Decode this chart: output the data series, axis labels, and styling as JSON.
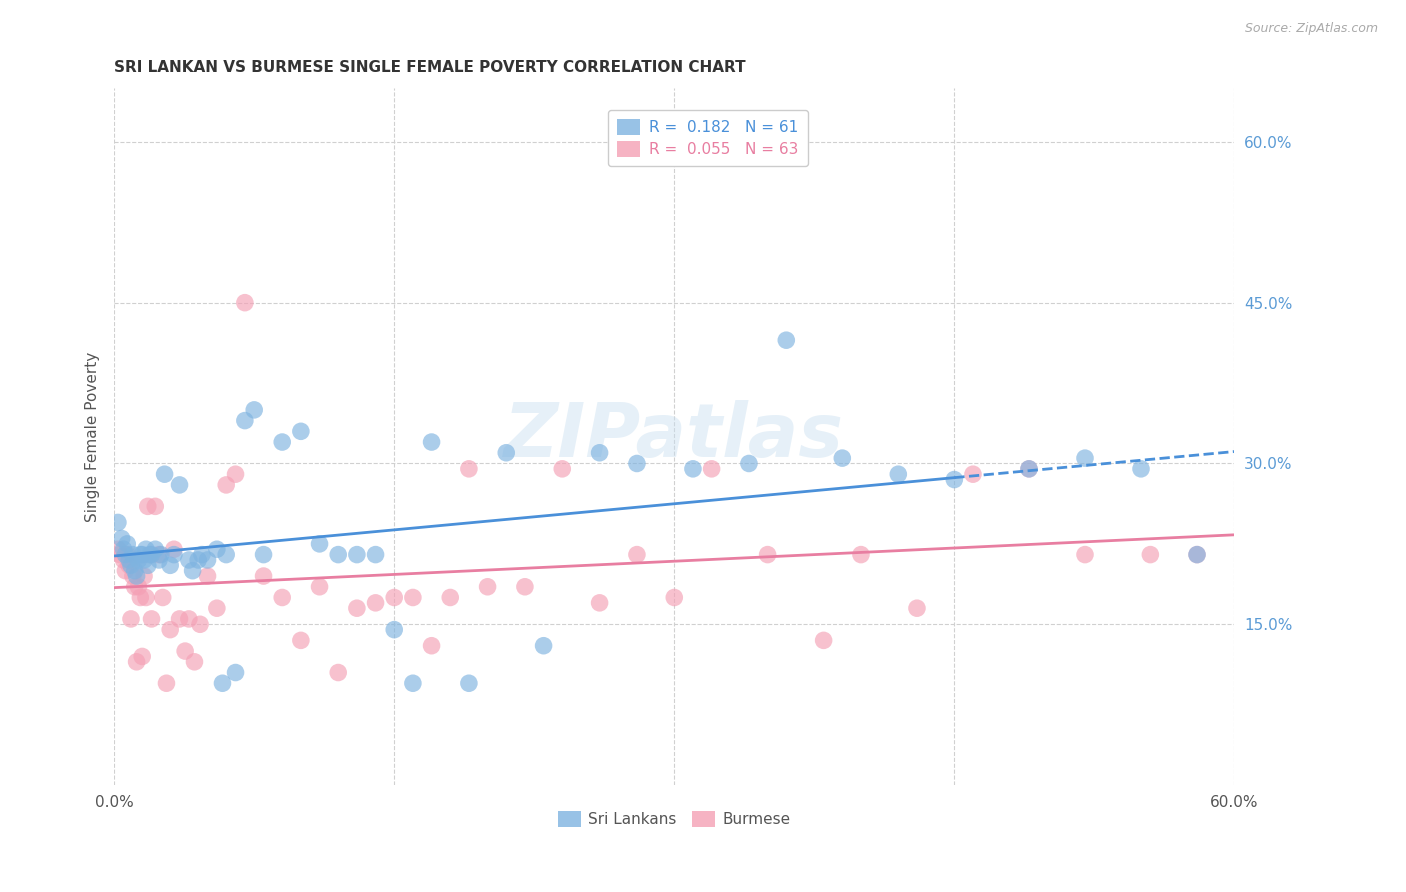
{
  "title": "SRI LANKAN VS BURMESE SINGLE FEMALE POVERTY CORRELATION CHART",
  "source": "Source: ZipAtlas.com",
  "ylabel": "Single Female Poverty",
  "xlim": [
    0.0,
    0.6
  ],
  "ylim": [
    0.0,
    0.65
  ],
  "ytick_values_right": [
    0.6,
    0.45,
    0.3,
    0.15
  ],
  "sri_lankans_color": "#7eb3e0",
  "burmese_color": "#f4a0b5",
  "sri_lankans_line_color": "#4a90d9",
  "burmese_line_color": "#e87ea1",
  "background_color": "#ffffff",
  "grid_color": "#d0d0d0",
  "watermark": "ZIPatlas",
  "sri_lankans_x": [
    0.002,
    0.004,
    0.005,
    0.006,
    0.007,
    0.008,
    0.009,
    0.01,
    0.011,
    0.012,
    0.013,
    0.014,
    0.015,
    0.016,
    0.017,
    0.018,
    0.019,
    0.02,
    0.022,
    0.024,
    0.025,
    0.027,
    0.03,
    0.032,
    0.035,
    0.04,
    0.042,
    0.045,
    0.047,
    0.05,
    0.055,
    0.058,
    0.06,
    0.065,
    0.07,
    0.075,
    0.08,
    0.09,
    0.1,
    0.11,
    0.12,
    0.13,
    0.14,
    0.15,
    0.16,
    0.17,
    0.19,
    0.21,
    0.23,
    0.26,
    0.28,
    0.31,
    0.34,
    0.36,
    0.39,
    0.42,
    0.45,
    0.49,
    0.52,
    0.55,
    0.58
  ],
  "sri_lankans_y": [
    0.245,
    0.23,
    0.22,
    0.215,
    0.225,
    0.21,
    0.205,
    0.215,
    0.2,
    0.195,
    0.21,
    0.215,
    0.215,
    0.21,
    0.22,
    0.205,
    0.215,
    0.215,
    0.22,
    0.21,
    0.215,
    0.29,
    0.205,
    0.215,
    0.28,
    0.21,
    0.2,
    0.21,
    0.215,
    0.21,
    0.22,
    0.095,
    0.215,
    0.105,
    0.34,
    0.35,
    0.215,
    0.32,
    0.33,
    0.225,
    0.215,
    0.215,
    0.215,
    0.145,
    0.095,
    0.32,
    0.095,
    0.31,
    0.13,
    0.31,
    0.3,
    0.295,
    0.3,
    0.415,
    0.305,
    0.29,
    0.285,
    0.295,
    0.305,
    0.295,
    0.215
  ],
  "burmese_x": [
    0.002,
    0.003,
    0.005,
    0.006,
    0.007,
    0.008,
    0.009,
    0.01,
    0.011,
    0.012,
    0.013,
    0.014,
    0.015,
    0.016,
    0.017,
    0.018,
    0.02,
    0.022,
    0.024,
    0.026,
    0.028,
    0.03,
    0.032,
    0.035,
    0.038,
    0.04,
    0.043,
    0.046,
    0.05,
    0.055,
    0.06,
    0.065,
    0.07,
    0.08,
    0.09,
    0.1,
    0.11,
    0.12,
    0.13,
    0.14,
    0.15,
    0.16,
    0.17,
    0.18,
    0.19,
    0.2,
    0.22,
    0.24,
    0.26,
    0.28,
    0.3,
    0.32,
    0.35,
    0.38,
    0.4,
    0.43,
    0.46,
    0.49,
    0.52,
    0.555,
    0.58
  ],
  "burmese_y": [
    0.22,
    0.215,
    0.21,
    0.2,
    0.215,
    0.205,
    0.155,
    0.195,
    0.185,
    0.115,
    0.185,
    0.175,
    0.12,
    0.195,
    0.175,
    0.26,
    0.155,
    0.26,
    0.215,
    0.175,
    0.095,
    0.145,
    0.22,
    0.155,
    0.125,
    0.155,
    0.115,
    0.15,
    0.195,
    0.165,
    0.28,
    0.29,
    0.45,
    0.195,
    0.175,
    0.135,
    0.185,
    0.105,
    0.165,
    0.17,
    0.175,
    0.175,
    0.13,
    0.175,
    0.295,
    0.185,
    0.185,
    0.295,
    0.17,
    0.215,
    0.175,
    0.295,
    0.215,
    0.135,
    0.215,
    0.165,
    0.29,
    0.295,
    0.215,
    0.215,
    0.215
  ]
}
